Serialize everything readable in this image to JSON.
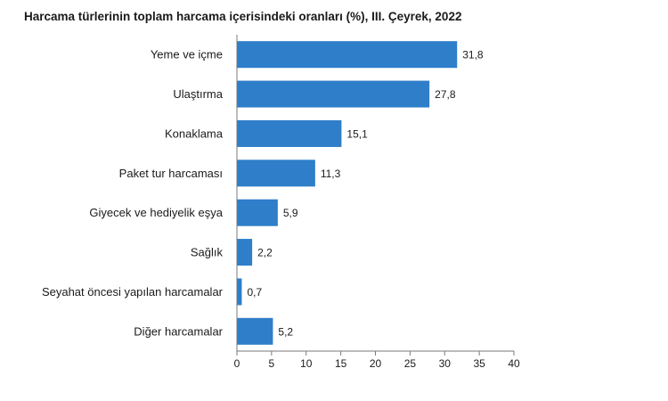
{
  "chart_data": {
    "type": "bar",
    "orientation": "horizontal",
    "title": "Harcama türlerinin toplam harcama içerisindeki oranları (%), III. Çeyrek, 2022",
    "categories": [
      "Yeme ve içme",
      "Ulaştırma",
      "Konaklama",
      "Paket tur harcaması",
      "Giyecek ve hediyelik eşya",
      "Sağlık",
      "Seyahat öncesi yapılan harcamalar",
      "Diğer harcamalar"
    ],
    "values": [
      31.8,
      27.8,
      15.1,
      11.3,
      5.9,
      2.2,
      0.7,
      5.2
    ],
    "value_labels": [
      "31,8",
      "27,8",
      "15,1",
      "11,3",
      "5,9",
      "2,2",
      "0,7",
      "5,2"
    ],
    "xlim": [
      0,
      40
    ],
    "xticks": [
      "0",
      "5",
      "10",
      "15",
      "20",
      "25",
      "30",
      "35",
      "40"
    ],
    "xlabel": "",
    "ylabel": "",
    "grid": false,
    "legend": "none",
    "bar_color": "#2e7ec9"
  }
}
